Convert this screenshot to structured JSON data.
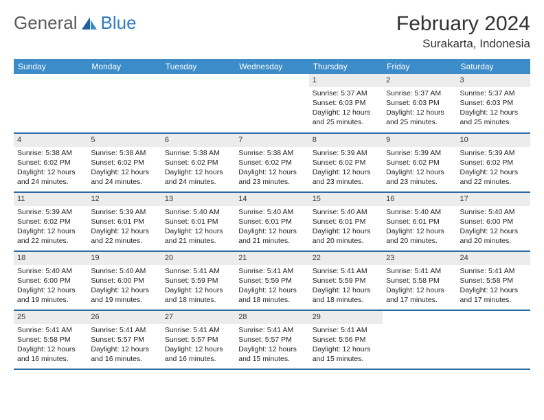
{
  "logo": {
    "word1": "General",
    "word2": "Blue"
  },
  "title": "February 2024",
  "location": "Surakarta, Indonesia",
  "header_bg": "#3b8cc9",
  "border_color": "#2e6da4",
  "dayname_bg": "#ececec",
  "weekdays": [
    "Sunday",
    "Monday",
    "Tuesday",
    "Wednesday",
    "Thursday",
    "Friday",
    "Saturday"
  ],
  "weeks": [
    [
      null,
      null,
      null,
      null,
      {
        "d": "1",
        "sr": "5:37 AM",
        "ss": "6:03 PM",
        "dl": "12 hours and 25 minutes."
      },
      {
        "d": "2",
        "sr": "5:37 AM",
        "ss": "6:03 PM",
        "dl": "12 hours and 25 minutes."
      },
      {
        "d": "3",
        "sr": "5:37 AM",
        "ss": "6:03 PM",
        "dl": "12 hours and 25 minutes."
      }
    ],
    [
      {
        "d": "4",
        "sr": "5:38 AM",
        "ss": "6:02 PM",
        "dl": "12 hours and 24 minutes."
      },
      {
        "d": "5",
        "sr": "5:38 AM",
        "ss": "6:02 PM",
        "dl": "12 hours and 24 minutes."
      },
      {
        "d": "6",
        "sr": "5:38 AM",
        "ss": "6:02 PM",
        "dl": "12 hours and 24 minutes."
      },
      {
        "d": "7",
        "sr": "5:38 AM",
        "ss": "6:02 PM",
        "dl": "12 hours and 23 minutes."
      },
      {
        "d": "8",
        "sr": "5:39 AM",
        "ss": "6:02 PM",
        "dl": "12 hours and 23 minutes."
      },
      {
        "d": "9",
        "sr": "5:39 AM",
        "ss": "6:02 PM",
        "dl": "12 hours and 23 minutes."
      },
      {
        "d": "10",
        "sr": "5:39 AM",
        "ss": "6:02 PM",
        "dl": "12 hours and 22 minutes."
      }
    ],
    [
      {
        "d": "11",
        "sr": "5:39 AM",
        "ss": "6:02 PM",
        "dl": "12 hours and 22 minutes."
      },
      {
        "d": "12",
        "sr": "5:39 AM",
        "ss": "6:01 PM",
        "dl": "12 hours and 22 minutes."
      },
      {
        "d": "13",
        "sr": "5:40 AM",
        "ss": "6:01 PM",
        "dl": "12 hours and 21 minutes."
      },
      {
        "d": "14",
        "sr": "5:40 AM",
        "ss": "6:01 PM",
        "dl": "12 hours and 21 minutes."
      },
      {
        "d": "15",
        "sr": "5:40 AM",
        "ss": "6:01 PM",
        "dl": "12 hours and 20 minutes."
      },
      {
        "d": "16",
        "sr": "5:40 AM",
        "ss": "6:01 PM",
        "dl": "12 hours and 20 minutes."
      },
      {
        "d": "17",
        "sr": "5:40 AM",
        "ss": "6:00 PM",
        "dl": "12 hours and 20 minutes."
      }
    ],
    [
      {
        "d": "18",
        "sr": "5:40 AM",
        "ss": "6:00 PM",
        "dl": "12 hours and 19 minutes."
      },
      {
        "d": "19",
        "sr": "5:40 AM",
        "ss": "6:00 PM",
        "dl": "12 hours and 19 minutes."
      },
      {
        "d": "20",
        "sr": "5:41 AM",
        "ss": "5:59 PM",
        "dl": "12 hours and 18 minutes."
      },
      {
        "d": "21",
        "sr": "5:41 AM",
        "ss": "5:59 PM",
        "dl": "12 hours and 18 minutes."
      },
      {
        "d": "22",
        "sr": "5:41 AM",
        "ss": "5:59 PM",
        "dl": "12 hours and 18 minutes."
      },
      {
        "d": "23",
        "sr": "5:41 AM",
        "ss": "5:58 PM",
        "dl": "12 hours and 17 minutes."
      },
      {
        "d": "24",
        "sr": "5:41 AM",
        "ss": "5:58 PM",
        "dl": "12 hours and 17 minutes."
      }
    ],
    [
      {
        "d": "25",
        "sr": "5:41 AM",
        "ss": "5:58 PM",
        "dl": "12 hours and 16 minutes."
      },
      {
        "d": "26",
        "sr": "5:41 AM",
        "ss": "5:57 PM",
        "dl": "12 hours and 16 minutes."
      },
      {
        "d": "27",
        "sr": "5:41 AM",
        "ss": "5:57 PM",
        "dl": "12 hours and 16 minutes."
      },
      {
        "d": "28",
        "sr": "5:41 AM",
        "ss": "5:57 PM",
        "dl": "12 hours and 15 minutes."
      },
      {
        "d": "29",
        "sr": "5:41 AM",
        "ss": "5:56 PM",
        "dl": "12 hours and 15 minutes."
      },
      null,
      null
    ]
  ],
  "labels": {
    "sunrise": "Sunrise: ",
    "sunset": "Sunset: ",
    "daylight": "Daylight: "
  }
}
